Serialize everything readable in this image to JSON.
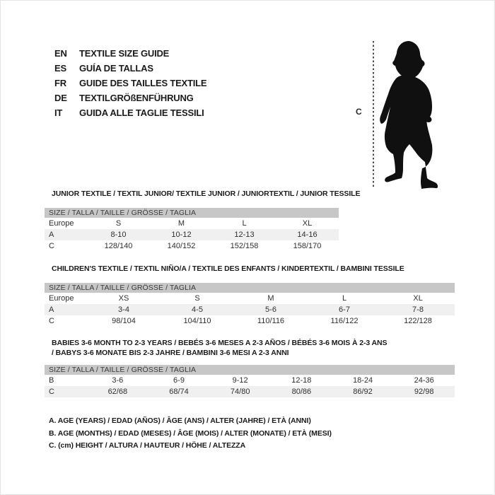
{
  "languages": [
    {
      "code": "EN",
      "label": "TEXTILE SIZE GUIDE"
    },
    {
      "code": "ES",
      "label": "GUÍA DE TALLAS"
    },
    {
      "code": "FR",
      "label": "GUIDE DES TAILLES TEXTILE"
    },
    {
      "code": "DE",
      "label": "TEXTILGRÖßENFÜHRUNG"
    },
    {
      "code": "IT",
      "label": "GUIDA ALLE TAGLIE TESSILI"
    }
  ],
  "figure": {
    "icon": "baby-silhouette",
    "measure_label": "C"
  },
  "colors": {
    "header_bar": "#c7c7c7",
    "row_stripe": "#f0f0f0",
    "text": "#1c1c1c"
  },
  "sections": [
    {
      "heading": "JUNIOR TEXTILE / TEXTIL JUNIOR/ TEXTILE JUNIOR / JUNIORTEXTIL / JUNIOR TESSILE",
      "table": {
        "size_header": "SIZE / TALLA / TAILLE / GRÖSSE / TAGLIA",
        "rows": [
          {
            "label": "Europe",
            "values": [
              "S",
              "M",
              "L",
              "XL"
            ],
            "stripe": false
          },
          {
            "label": "A",
            "values": [
              "8-10",
              "10-12",
              "12-13",
              "14-16"
            ],
            "stripe": true
          },
          {
            "label": "C",
            "values": [
              "128/140",
              "140/152",
              "152/158",
              "158/170"
            ],
            "stripe": false
          }
        ]
      }
    },
    {
      "heading": "CHILDREN'S TEXTILE / TEXTIL NIÑO/A / TEXTILE DES ENFANTS / KINDERTEXTIL / BAMBINI TESSILE",
      "table": {
        "size_header": "SIZE / TALLA / TAILLE / GRÖSSE / TAGLIA",
        "rows": [
          {
            "label": "Europe",
            "values": [
              "XS",
              "S",
              "M",
              "L",
              "XL"
            ],
            "stripe": false
          },
          {
            "label": "A",
            "values": [
              "3-4",
              "4-5",
              "5-6",
              "6-7",
              "7-8"
            ],
            "stripe": true
          },
          {
            "label": "C",
            "values": [
              "98/104",
              "104/110",
              "110/116",
              "116/122",
              "122/128"
            ],
            "stripe": false
          }
        ]
      }
    },
    {
      "heading": "BABIES 3-6 MONTH TO 2-3 YEARS / BEBÉS 3-6 MESES A 2-3 AÑOS / BÉBÉS 3-6 MOIS À 2-3 ANS / BABYS 3-6 MONATE BIS 2-3 JAHRE / BAMBINI 3-6 MESI A 2-3 ANNI",
      "table": {
        "size_header": "SIZE / TALLA / TAILLE / GRÖSSE / TAGLIA",
        "rows": [
          {
            "label": "B",
            "values": [
              "3-6",
              "6-9",
              "9-12",
              "12-18",
              "18-24",
              "24-36"
            ],
            "stripe": false
          },
          {
            "label": "C",
            "values": [
              "62/68",
              "68/74",
              "74/80",
              "80/86",
              "86/92",
              "92/98"
            ],
            "stripe": true
          }
        ]
      }
    }
  ],
  "footnotes": [
    "A. AGE (YEARS) / EDAD (AÑOS) / ÂGE (ANS) / ALTER (JAHRE) / ETÀ (ANNI)",
    "B. AGE (MONTHS) / EDAD (MESES) / ÂGE (MOIS) / ALTER (MONATE) / ETÀ (MESI)",
    "C. (cm) HEIGHT / ALTURA / HAUTEUR / HÖHE / ALTEZZA"
  ]
}
